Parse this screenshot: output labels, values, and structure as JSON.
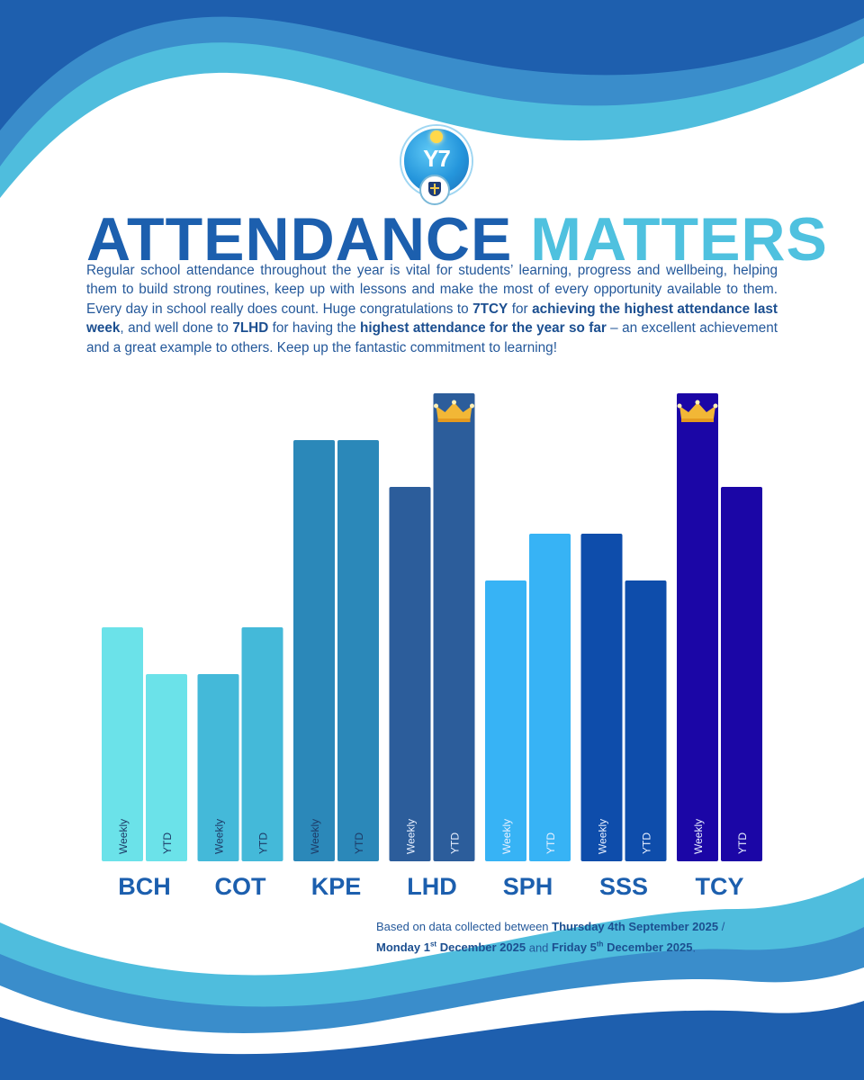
{
  "colors": {
    "title_dark": "#1c5fae",
    "title_light": "#4fc1df",
    "wave_dark": "#1e5fae",
    "wave_mid": "#3a8dcb",
    "wave_light": "#4fbddd",
    "crown": "#f2b736"
  },
  "logo": {
    "label": "Y7"
  },
  "title": {
    "part1": "ATTENDANCE",
    "part2": "MATTERS"
  },
  "intro": {
    "p1": "Regular school attendance throughout the year is vital for students’ learning, progress and wellbeing, helping them to build strong routines, keep up with lessons and make the most of every opportunity available to them. Every day in school really does count. Huge congratulations to ",
    "b1": "7TCY",
    "p2": " for ",
    "b2": "achieving the highest attendance last week",
    "p3": ", and well done to ",
    "b3": "7LHD",
    "p4": " for having the ",
    "b4": "highest attendance for the year so far",
    "p5": " – an excellent achievement and a great example to others. Keep up the fantastic commitment to learning!"
  },
  "chart_data": {
    "type": "bar",
    "title": "",
    "xlabel": "",
    "ylabel": "",
    "categories": [
      "BCH",
      "COT",
      "KPE",
      "LHD",
      "SPH",
      "SSS",
      "TCY"
    ],
    "series": [
      {
        "name": "Weekly",
        "values": [
          5,
          4,
          9,
          8,
          6,
          7,
          10
        ]
      },
      {
        "name": "YTD",
        "values": [
          4,
          5,
          9,
          10,
          7,
          6,
          8
        ]
      }
    ],
    "bar_colors": [
      [
        "#6be2e9",
        "#6be2e9"
      ],
      [
        "#44b9d9",
        "#44b9d9"
      ],
      [
        "#2b88b9",
        "#2b88b9"
      ],
      [
        "#2c5d9b",
        "#2c5d9b"
      ],
      [
        "#37b3f5",
        "#37b3f5"
      ],
      [
        "#0e4dab",
        "#0e4dab"
      ],
      [
        "#1b06a6",
        "#1b06a6"
      ]
    ],
    "crowns": [
      {
        "category": "LHD",
        "series": "YTD"
      },
      {
        "category": "TCY",
        "series": "Weekly"
      }
    ],
    "ylim": [
      0,
      10
    ]
  },
  "footnote": {
    "p1": "Based on data collected between ",
    "b1": "Thursday 4th September 2025",
    "p2": " / ",
    "b2a": "Monday 1",
    "b2sup": "st",
    "b2b": " December 2025",
    "p3": " and ",
    "b3a": "Friday 5",
    "b3sup": "th",
    "b3b": " December 2025",
    "p4": "."
  }
}
